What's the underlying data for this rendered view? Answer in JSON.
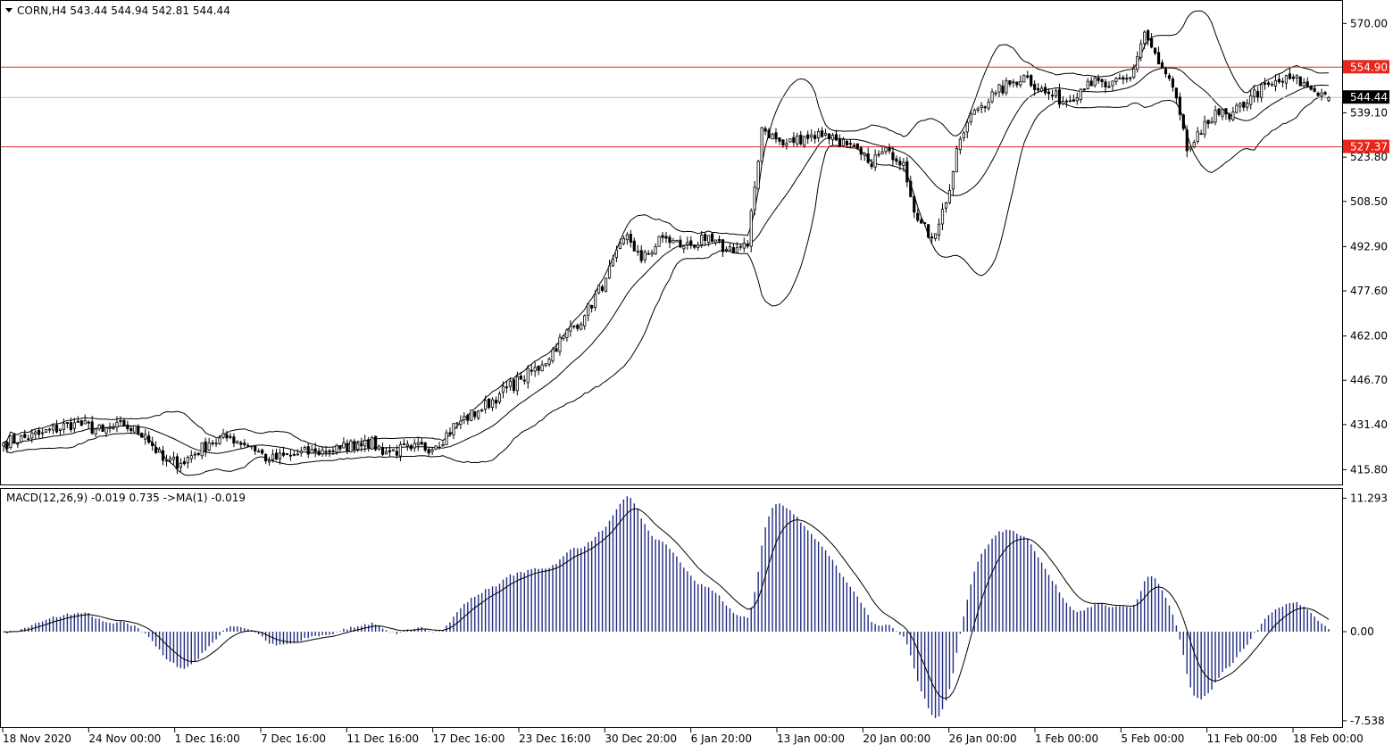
{
  "symbol_header": {
    "text": "CORN,H4  543.44 544.94 542.81 544.44"
  },
  "colors": {
    "background": "#ffffff",
    "candle": "#000000",
    "bands": "#000000",
    "level_line": "#e8261c",
    "current_price_line": "#c0c0c0",
    "level_label_bg": "#e8261c",
    "current_label_bg": "#000000",
    "macd_histogram": "#1f2a80",
    "macd_signal": "#000000"
  },
  "chart_data": [
    {
      "type": "candlestick",
      "title": "CORN,H4",
      "ohlc_last": {
        "open": 543.44,
        "high": 544.94,
        "low": 542.81,
        "close": 544.44
      },
      "y_ticks": [
        570.0,
        554.9,
        539.1,
        523.8,
        508.5,
        492.9,
        477.6,
        462.0,
        446.7,
        431.4,
        415.8
      ],
      "y_tick_labels": [
        "570.00",
        "539.10",
        "523.80",
        "508.50",
        "492.90",
        "477.60",
        "462.00",
        "446.70",
        "431.40",
        "415.80"
      ],
      "ylim": [
        411.0,
        577.5
      ],
      "x_tick_labels": [
        "18 Nov 2020",
        "24 Nov 00:00",
        "1 Dec 16:00",
        "7 Dec 16:00",
        "11 Dec 16:00",
        "17 Dec 16:00",
        "23 Dec 16:00",
        "30 Dec 20:00",
        "6 Jan 20:00",
        "13 Jan 00:00",
        "20 Jan 00:00",
        "26 Jan 00:00",
        "1 Feb 00:00",
        "5 Feb 00:00",
        "11 Feb 00:00",
        "18 Feb 00:00"
      ],
      "horizontal_levels": [
        {
          "value": 554.9,
          "label": "554.90"
        },
        {
          "value": 527.37,
          "label": "527.37"
        }
      ],
      "current_price": {
        "value": 544.44,
        "label": "544.44"
      },
      "indicator": "Bollinger Bands",
      "close_keypoints": [
        [
          0,
          425
        ],
        [
          10,
          428
        ],
        [
          20,
          432
        ],
        [
          28,
          429
        ],
        [
          34,
          431
        ],
        [
          40,
          428
        ],
        [
          45,
          419
        ],
        [
          50,
          418
        ],
        [
          58,
          425
        ],
        [
          64,
          427
        ],
        [
          70,
          424
        ],
        [
          75,
          419
        ],
        [
          82,
          421
        ],
        [
          88,
          422
        ],
        [
          95,
          423
        ],
        [
          102,
          426
        ],
        [
          108,
          422
        ],
        [
          115,
          423
        ],
        [
          122,
          424
        ],
        [
          128,
          432
        ],
        [
          134,
          436
        ],
        [
          140,
          442
        ],
        [
          146,
          447
        ],
        [
          152,
          452
        ],
        [
          158,
          462
        ],
        [
          164,
          469
        ],
        [
          170,
          482
        ],
        [
          176,
          497
        ],
        [
          180,
          488
        ],
        [
          186,
          496
        ],
        [
          192,
          493
        ],
        [
          198,
          495
        ],
        [
          204,
          492
        ],
        [
          210,
          493
        ],
        [
          214,
          534
        ],
        [
          220,
          528
        ],
        [
          226,
          531
        ],
        [
          232,
          532
        ],
        [
          238,
          528
        ],
        [
          244,
          522
        ],
        [
          250,
          526
        ],
        [
          254,
          522
        ],
        [
          258,
          502
        ],
        [
          262,
          496
        ],
        [
          266,
          508
        ],
        [
          270,
          530
        ],
        [
          274,
          540
        ],
        [
          280,
          546
        ],
        [
          284,
          549
        ],
        [
          288,
          552
        ],
        [
          294,
          546
        ],
        [
          300,
          543
        ],
        [
          306,
          550
        ],
        [
          312,
          548
        ],
        [
          318,
          551
        ],
        [
          322,
          567
        ],
        [
          326,
          556
        ],
        [
          330,
          548
        ],
        [
          334,
          526
        ],
        [
          338,
          532
        ],
        [
          342,
          540
        ],
        [
          346,
          537
        ],
        [
          352,
          545
        ],
        [
          358,
          549
        ],
        [
          364,
          551
        ],
        [
          368,
          548
        ],
        [
          372,
          546
        ],
        [
          374,
          544.44
        ]
      ]
    },
    {
      "type": "macd",
      "title": "MACD(12,26,9) -0.019 0.735  ->MA(1) -0.019",
      "params": "12,26,9",
      "values": {
        "macd": -0.019,
        "signal": 0.735,
        "ma1": -0.019
      },
      "y_ticks": [
        11.293,
        0.0,
        -7.538
      ],
      "y_tick_labels": [
        "11.293",
        "0.00",
        "-7.538"
      ],
      "ylim": [
        -8.0,
        12.0
      ]
    }
  ]
}
